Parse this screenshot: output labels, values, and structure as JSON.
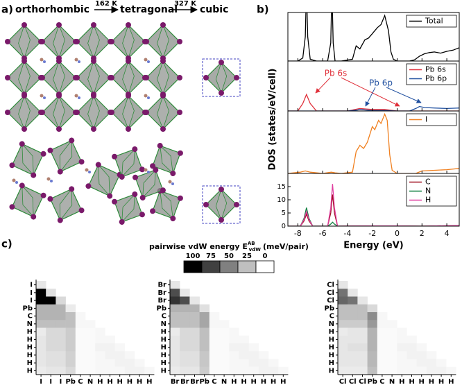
{
  "panel_a": {
    "label": "a)",
    "phases": [
      "orthorhombic",
      "tetragonal",
      "cubic"
    ],
    "transitions": [
      "162 K",
      "327 K"
    ]
  },
  "panel_b": {
    "label": "b)",
    "ylabel": "DOS (states/eV/cell)"
  },
  "panel_c": {
    "label": "c)",
    "colorbar": {
      "title": "pairwise vdW energy E",
      "superscript": "AB",
      "subscript": "vdW",
      "unit": "(meV/pair)",
      "lim": [
        0,
        100
      ],
      "ticks": [
        100,
        75,
        50,
        25,
        0
      ]
    }
  },
  "chart_data": [
    {
      "type": "line",
      "xlim": [
        -8.8,
        5
      ],
      "ylim": [
        0,
        80
      ],
      "legend": "upper right",
      "x": [
        -8.8,
        -8,
        -7.6,
        -7.4,
        -7.3,
        -7.2,
        -7,
        -6.5,
        -5.6,
        -5.35,
        -5.25,
        -5.15,
        -5,
        -4.5,
        -3.6,
        -3.3,
        -3,
        -2.6,
        -2.3,
        -2,
        -1.6,
        -1.3,
        -1,
        -0.7,
        -0.5,
        -0.3,
        0,
        1,
        1.4,
        1.8,
        2.2,
        2.6,
        3,
        3.5,
        4,
        4.5,
        5
      ],
      "series": [
        {
          "name": "Total",
          "color": "#000000",
          "values": [
            0,
            0,
            5,
            40,
            120,
            40,
            3,
            0,
            0,
            30,
            120,
            30,
            0,
            0,
            3,
            25,
            20,
            35,
            38,
            45,
            55,
            60,
            75,
            50,
            15,
            3,
            0,
            0,
            2,
            8,
            12,
            14,
            15,
            13,
            16,
            18,
            22
          ]
        }
      ]
    },
    {
      "type": "line",
      "xlim": [
        -8.8,
        5
      ],
      "ylim": [
        0,
        10
      ],
      "legend": "upper right",
      "x": [
        -8.8,
        -8,
        -7.6,
        -7.3,
        -7,
        -6.5,
        -5.5,
        -4,
        -3.2,
        -3,
        -2.5,
        -2,
        -1,
        0,
        0.5,
        1,
        1.5,
        1.8,
        2.2,
        3,
        4,
        5
      ],
      "series": [
        {
          "name": "Pb 6s",
          "color": "#e0303a",
          "values": [
            0,
            0,
            1.5,
            3.3,
            1.5,
            0,
            0,
            0,
            0.4,
            0.5,
            0.4,
            0.3,
            0.3,
            0,
            0,
            0,
            0,
            0,
            0,
            0,
            0,
            0
          ]
        },
        {
          "name": "Pb 6p",
          "color": "#2050a0",
          "values": [
            0,
            0,
            0,
            0,
            0,
            0,
            0,
            0,
            0.2,
            0.3,
            0.2,
            0.1,
            0.1,
            0,
            0,
            0,
            0.5,
            0.9,
            0.7,
            0.6,
            0.5,
            0.6
          ]
        }
      ],
      "annotations": [
        {
          "text": "Pb 6s",
          "color": "#e0303a"
        },
        {
          "text": "Pb 6p",
          "color": "#2050a0"
        }
      ]
    },
    {
      "type": "line",
      "xlim": [
        -8.8,
        5
      ],
      "ylim": [
        0,
        10
      ],
      "legend": "upper right",
      "x": [
        -8.8,
        -7.8,
        -7.4,
        -7,
        -6,
        -5.3,
        -5,
        -4.5,
        -3.6,
        -3.3,
        -3,
        -2.7,
        -2.4,
        -2,
        -1.8,
        -1.5,
        -1.3,
        -1,
        -0.8,
        -0.6,
        -0.4,
        0,
        1.5,
        2,
        3,
        4,
        5
      ],
      "series": [
        {
          "name": "I",
          "color": "#f08020",
          "values": [
            0,
            0.2,
            0.4,
            0.2,
            0,
            0.2,
            0.1,
            0,
            0.2,
            3.5,
            4.5,
            4,
            5,
            7.5,
            7,
            8.5,
            8,
            9.5,
            8.5,
            3,
            0.5,
            0,
            0,
            0.4,
            0.5,
            0.6,
            0.8
          ]
        }
      ]
    },
    {
      "type": "line",
      "xlim": [
        -8.8,
        5
      ],
      "ylim": [
        0,
        20
      ],
      "legend": "upper right",
      "xticks": [
        -8,
        -6,
        -4,
        -2,
        0,
        2,
        4
      ],
      "yticks": [
        0,
        5,
        10,
        15
      ],
      "xlabel": "Energy (eV)",
      "x": [
        -8.8,
        -7.8,
        -7.5,
        -7.3,
        -7.1,
        -6.8,
        -5.6,
        -5.35,
        -5.2,
        -5.05,
        -4.8,
        -2,
        0,
        2,
        5
      ],
      "series": [
        {
          "name": "C",
          "color": "#a01020",
          "values": [
            0,
            0,
            2,
            4.5,
            2,
            0,
            0,
            5,
            12,
            5,
            0,
            0.1,
            0.1,
            0,
            0.2
          ]
        },
        {
          "name": "N",
          "color": "#108040",
          "values": [
            0,
            0,
            3,
            7,
            3,
            0,
            0,
            0.8,
            1.5,
            0.8,
            0,
            0,
            0,
            0,
            0
          ]
        },
        {
          "name": "H",
          "color": "#e040a0",
          "values": [
            0,
            0,
            2.5,
            5.5,
            2.5,
            0,
            0,
            7,
            16,
            7,
            0,
            0.1,
            0.1,
            0,
            0.2
          ]
        }
      ]
    },
    {
      "type": "heatmap",
      "x_labels": [
        "I",
        "I",
        "I",
        "Pb",
        "C",
        "N",
        "H",
        "H",
        "H",
        "H",
        "H",
        "H"
      ],
      "y_labels": [
        "I",
        "I",
        "I",
        "Pb",
        "C",
        "N",
        "H",
        "H",
        "H",
        "H",
        "H",
        "H"
      ],
      "values": [
        [
          10
        ],
        [
          100,
          12
        ],
        [
          100,
          100,
          15
        ],
        [
          30,
          30,
          30,
          8
        ],
        [
          30,
          30,
          30,
          25,
          3
        ],
        [
          25,
          25,
          25,
          25,
          3,
          3
        ],
        [
          8,
          15,
          15,
          20,
          2,
          2,
          3
        ],
        [
          10,
          15,
          15,
          20,
          2,
          2,
          3,
          3
        ],
        [
          10,
          15,
          15,
          20,
          2,
          2,
          5,
          5,
          3
        ],
        [
          10,
          12,
          12,
          18,
          2,
          2,
          3,
          5,
          5,
          3
        ],
        [
          10,
          12,
          12,
          18,
          2,
          2,
          3,
          3,
          5,
          5,
          3
        ],
        [
          8,
          10,
          10,
          15,
          2,
          2,
          3,
          3,
          3,
          5,
          5,
          3
        ]
      ]
    },
    {
      "type": "heatmap",
      "x_labels": [
        "Br",
        "Br",
        "Br",
        "Pb",
        "C",
        "N",
        "H",
        "H",
        "H",
        "H",
        "H",
        "H"
      ],
      "y_labels": [
        "Br",
        "Br",
        "Br",
        "Pb",
        "C",
        "N",
        "H",
        "H",
        "H",
        "H",
        "H",
        "H"
      ],
      "values": [
        [
          10
        ],
        [
          70,
          10
        ],
        [
          80,
          70,
          10
        ],
        [
          30,
          30,
          30,
          12
        ],
        [
          25,
          25,
          25,
          35,
          3
        ],
        [
          25,
          25,
          25,
          35,
          3,
          3
        ],
        [
          8,
          15,
          15,
          25,
          2,
          2,
          3
        ],
        [
          10,
          15,
          15,
          25,
          2,
          2,
          3,
          3
        ],
        [
          10,
          15,
          15,
          25,
          2,
          2,
          5,
          5,
          3
        ],
        [
          10,
          12,
          12,
          22,
          2,
          2,
          3,
          5,
          5,
          3
        ],
        [
          10,
          12,
          12,
          22,
          2,
          2,
          3,
          3,
          5,
          5,
          3
        ],
        [
          8,
          10,
          10,
          20,
          2,
          2,
          3,
          3,
          3,
          5,
          5,
          3
        ]
      ]
    },
    {
      "type": "heatmap",
      "x_labels": [
        "Cl",
        "Cl",
        "Cl",
        "Pb",
        "C",
        "N",
        "H",
        "H",
        "H",
        "H",
        "H",
        "H"
      ],
      "y_labels": [
        "Cl",
        "Cl",
        "Cl",
        "Pb",
        "C",
        "N",
        "H",
        "H",
        "H",
        "H",
        "H",
        "H"
      ],
      "values": [
        [
          10
        ],
        [
          55,
          10
        ],
        [
          60,
          55,
          10
        ],
        [
          25,
          25,
          25,
          15
        ],
        [
          25,
          25,
          25,
          45,
          3
        ],
        [
          20,
          20,
          20,
          40,
          3,
          3
        ],
        [
          8,
          10,
          10,
          30,
          2,
          2,
          3
        ],
        [
          10,
          10,
          10,
          30,
          2,
          2,
          3,
          3
        ],
        [
          10,
          12,
          12,
          30,
          2,
          2,
          5,
          5,
          3
        ],
        [
          10,
          10,
          10,
          28,
          2,
          2,
          3,
          5,
          5,
          3
        ],
        [
          10,
          10,
          10,
          28,
          2,
          2,
          3,
          3,
          5,
          5,
          3
        ],
        [
          8,
          8,
          8,
          25,
          2,
          2,
          3,
          3,
          3,
          5,
          5,
          3
        ]
      ]
    }
  ]
}
